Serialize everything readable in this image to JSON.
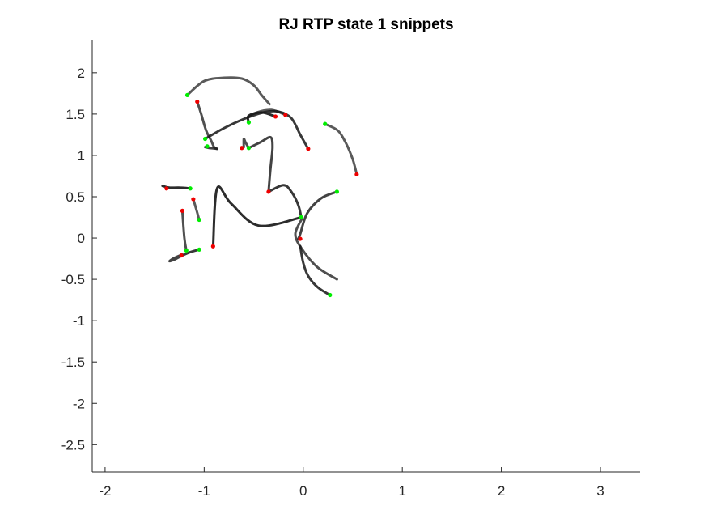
{
  "chart_data": {
    "type": "line",
    "title": "RJ  RTP state 1 snippets",
    "xlabel": "",
    "ylabel": "",
    "xlim": [
      -2.13,
      3.4
    ],
    "ylim": [
      -2.83,
      2.4
    ],
    "xticks": [
      -2,
      -1,
      0,
      1,
      2,
      3
    ],
    "yticks": [
      2,
      1.5,
      1,
      0.5,
      0,
      -0.5,
      -1,
      -1.5,
      -2,
      -2.5
    ],
    "xtick_labels": [
      "-2",
      "-1",
      "0",
      "1",
      "2",
      "3"
    ],
    "ytick_labels": [
      "2",
      "1.5",
      "1",
      "0.5",
      "0",
      "-0.5",
      "-1",
      "-1.5",
      "-2",
      "-2.5"
    ],
    "grid": false,
    "legend": "none",
    "start_marker_color": "#00ee00",
    "end_marker_color": "#ee0000",
    "line_color": "#1a1a1a",
    "series": [
      {
        "x": [
          -1.17,
          -1.0,
          -0.8,
          -0.62,
          -0.5,
          -0.42,
          -0.34
        ],
        "y": [
          1.73,
          1.9,
          1.94,
          1.93,
          1.85,
          1.73,
          1.62
        ]
      },
      {
        "x": [
          -1.07,
          -1.03,
          -0.98,
          -0.93,
          -0.9,
          -0.87
        ],
        "y": [
          1.65,
          1.5,
          1.3,
          1.18,
          1.1,
          1.08
        ]
      },
      {
        "x": [
          -0.87,
          -0.95,
          -0.99
        ],
        "y": [
          1.08,
          1.09,
          1.1
        ]
      },
      {
        "x": [
          -0.99,
          -0.8,
          -0.6,
          -0.4,
          -0.25,
          -0.12,
          -0.03,
          0.05
        ],
        "y": [
          1.2,
          1.33,
          1.44,
          1.52,
          1.53,
          1.45,
          1.25,
          1.08
        ]
      },
      {
        "x": [
          -0.55,
          -0.55,
          -0.42,
          -0.28
        ],
        "y": [
          1.4,
          1.48,
          1.52,
          1.47
        ]
      },
      {
        "x": [
          -0.56,
          -0.47,
          -0.32,
          -0.18
        ],
        "y": [
          1.46,
          1.52,
          1.55,
          1.49
        ]
      },
      {
        "x": [
          -0.6,
          -0.6,
          -0.58,
          -0.55
        ],
        "y": [
          1.1,
          1.2,
          1.15,
          1.09
        ]
      },
      {
        "x": [
          -0.55,
          -0.43,
          -0.33,
          -0.31,
          -0.33,
          -0.35
        ],
        "y": [
          1.09,
          1.16,
          1.22,
          1.1,
          0.85,
          0.56
        ]
      },
      {
        "x": [
          -0.35,
          -0.2,
          -0.12,
          -0.05,
          -0.02
        ],
        "y": [
          0.56,
          0.64,
          0.56,
          0.4,
          0.25
        ]
      },
      {
        "x": [
          -0.02,
          -0.45,
          -0.73,
          -0.87,
          -0.91
        ],
        "y": [
          0.25,
          0.15,
          0.42,
          0.6,
          -0.1
        ]
      },
      {
        "x": [
          0.22,
          0.35,
          0.43,
          0.5,
          0.54
        ],
        "y": [
          1.38,
          1.3,
          1.15,
          0.95,
          0.77
        ]
      },
      {
        "x": [
          -0.01,
          -0.08,
          -0.02,
          0.14,
          0.34
        ],
        "y": [
          0.24,
          0.05,
          -0.12,
          -0.35,
          -0.5
        ]
      },
      {
        "x": [
          0.34,
          0.18,
          0.04,
          -0.03,
          -0.05
        ],
        "y": [
          0.56,
          0.48,
          0.3,
          0.05,
          -0.01
        ]
      },
      {
        "x": [
          0.27,
          0.15,
          0.05,
          0.0,
          -0.03
        ],
        "y": [
          -0.69,
          -0.6,
          -0.46,
          -0.3,
          -0.1
        ]
      },
      {
        "x": [
          -1.14,
          -1.25,
          -1.35,
          -1.42
        ],
        "y": [
          0.6,
          0.61,
          0.61,
          0.63
        ]
      },
      {
        "x": [
          -1.05,
          -1.08,
          -1.11
        ],
        "y": [
          0.22,
          0.35,
          0.47
        ]
      },
      {
        "x": [
          -1.18,
          -1.2,
          -1.22
        ],
        "y": [
          -0.15,
          0.0,
          0.33
        ]
      },
      {
        "x": [
          -1.22,
          -1.3,
          -1.35,
          -1.3,
          -1.22
        ],
        "y": [
          -0.2,
          -0.24,
          -0.28,
          -0.26,
          -0.21
        ]
      },
      {
        "x": [
          -1.05,
          -1.14,
          -1.22
        ],
        "y": [
          -0.14,
          -0.17,
          -0.21
        ]
      }
    ],
    "start_points": [
      {
        "x": -1.17,
        "y": 1.73
      },
      {
        "x": -0.99,
        "y": 1.2
      },
      {
        "x": -0.97,
        "y": 1.11
      },
      {
        "x": -0.55,
        "y": 1.4
      },
      {
        "x": -0.55,
        "y": 1.09
      },
      {
        "x": 0.22,
        "y": 1.38
      },
      {
        "x": -1.14,
        "y": 0.6
      },
      {
        "x": 0.34,
        "y": 0.56
      },
      {
        "x": -0.02,
        "y": 0.25
      },
      {
        "x": -1.05,
        "y": 0.22
      },
      {
        "x": -1.18,
        "y": -0.15
      },
      {
        "x": -1.05,
        "y": -0.14
      },
      {
        "x": 0.27,
        "y": -0.69
      }
    ],
    "end_points": [
      {
        "x": -1.07,
        "y": 1.65
      },
      {
        "x": -0.28,
        "y": 1.47
      },
      {
        "x": -0.18,
        "y": 1.49
      },
      {
        "x": -0.62,
        "y": 1.09
      },
      {
        "x": 0.05,
        "y": 1.08
      },
      {
        "x": 0.54,
        "y": 0.77
      },
      {
        "x": -1.38,
        "y": 0.6
      },
      {
        "x": -0.35,
        "y": 0.56
      },
      {
        "x": -1.22,
        "y": 0.33
      },
      {
        "x": -1.11,
        "y": 0.47
      },
      {
        "x": -0.03,
        "y": -0.01
      },
      {
        "x": -0.91,
        "y": -0.1
      },
      {
        "x": -1.23,
        "y": -0.21
      }
    ]
  }
}
